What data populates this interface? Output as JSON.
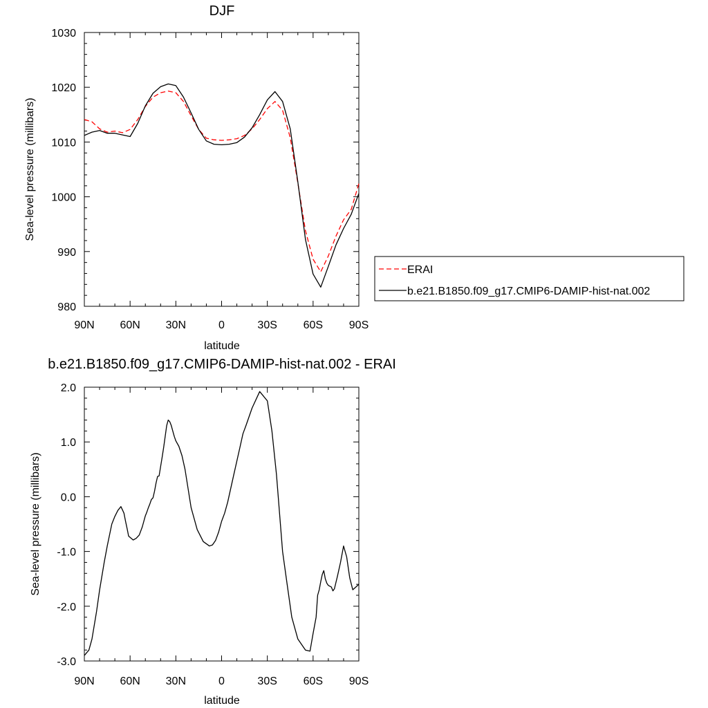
{
  "chart_data": [
    {
      "type": "line",
      "title": "DJF",
      "xlabel": "latitude",
      "ylabel": "Sea-level pressure (millibars)",
      "xlim": [
        90,
        -90
      ],
      "ylim": [
        980,
        1030
      ],
      "x_ticks": [
        {
          "value": 90,
          "label": "90N"
        },
        {
          "value": 60,
          "label": "60N"
        },
        {
          "value": 30,
          "label": "30N"
        },
        {
          "value": 0,
          "label": "0"
        },
        {
          "value": -30,
          "label": "30S"
        },
        {
          "value": -60,
          "label": "60S"
        },
        {
          "value": -90,
          "label": "90S"
        }
      ],
      "y_ticks": [
        {
          "value": 1030,
          "label": "1030"
        },
        {
          "value": 1020,
          "label": "1020"
        },
        {
          "value": 1010,
          "label": "1010"
        },
        {
          "value": 1000,
          "label": "1000"
        },
        {
          "value": 990,
          "label": "990"
        },
        {
          "value": 980,
          "label": "980"
        }
      ],
      "legend": {
        "placement": "right"
      },
      "x": [
        90,
        85,
        80,
        75,
        70,
        65,
        60,
        55,
        50,
        45,
        40,
        35,
        30,
        25,
        20,
        15,
        10,
        5,
        0,
        -5,
        -10,
        -15,
        -20,
        -25,
        -30,
        -35,
        -40,
        -45,
        -50,
        -55,
        -60,
        -65,
        -70,
        -75,
        -80,
        -85,
        -90
      ],
      "series": [
        {
          "name": "ERAI",
          "color": "#ff0000",
          "style": "dashed",
          "values": [
            1014.1,
            1013.7,
            1012.4,
            1011.8,
            1012.0,
            1011.7,
            1012.3,
            1014.1,
            1016.5,
            1018.2,
            1019.0,
            1019.3,
            1019.0,
            1017.4,
            1014.8,
            1012.3,
            1010.7,
            1010.4,
            1010.3,
            1010.4,
            1010.6,
            1011.2,
            1012.4,
            1014.1,
            1016.1,
            1017.4,
            1015.8,
            1010.8,
            1002.5,
            993.8,
            988.6,
            986.3,
            989.2,
            992.8,
            995.8,
            997.7,
            1002.4
          ]
        },
        {
          "name": "b.e21.B1850.f09_g17.CMIP6-DAMIP-hist-nat.002",
          "color": "#000000",
          "style": "solid",
          "values": [
            1011.2,
            1011.8,
            1012.1,
            1011.6,
            1011.6,
            1011.3,
            1011.0,
            1013.4,
            1016.6,
            1018.9,
            1020.1,
            1020.6,
            1020.3,
            1018.2,
            1015.3,
            1012.3,
            1010.2,
            1009.6,
            1009.5,
            1009.6,
            1009.9,
            1010.9,
            1012.6,
            1015.0,
            1017.7,
            1019.2,
            1017.4,
            1012.4,
            1002.7,
            992.2,
            985.9,
            983.5,
            987.3,
            991.2,
            994.2,
            996.8,
            1000.6
          ]
        }
      ]
    },
    {
      "type": "line",
      "title": "b.e21.B1850.f09_g17.CMIP6-DAMIP-hist-nat.002 - ERAI",
      "xlabel": "latitude",
      "ylabel": "Sea-level pressure (millibars)",
      "xlim": [
        90,
        -90
      ],
      "ylim": [
        -3.0,
        2.0
      ],
      "x_ticks": [
        {
          "value": 90,
          "label": "90N"
        },
        {
          "value": 60,
          "label": "60N"
        },
        {
          "value": 30,
          "label": "30N"
        },
        {
          "value": 0,
          "label": "0"
        },
        {
          "value": -30,
          "label": "30S"
        },
        {
          "value": -60,
          "label": "60S"
        },
        {
          "value": -90,
          "label": "90S"
        }
      ],
      "y_ticks": [
        {
          "value": 2.0,
          "label": "2.0"
        },
        {
          "value": 1.0,
          "label": "1.0"
        },
        {
          "value": 0.0,
          "label": "0.0"
        },
        {
          "value": -1.0,
          "label": "-1.0"
        },
        {
          "value": -2.0,
          "label": "-2.0"
        },
        {
          "value": -3.0,
          "label": "-3.0"
        }
      ],
      "x": [
        90,
        87,
        85,
        82,
        80,
        77,
        75,
        72,
        70,
        68,
        66,
        64,
        63,
        62,
        61,
        58,
        56,
        54,
        52,
        50,
        49,
        48,
        47,
        46,
        45,
        44,
        43,
        42,
        41,
        40,
        39,
        38,
        37,
        36,
        35,
        34,
        33,
        32,
        31,
        30,
        28,
        26,
        24,
        20,
        16,
        12,
        8,
        6,
        4,
        2,
        0,
        -2,
        -4,
        -8,
        -12,
        -14,
        -16,
        -20,
        -25,
        -30,
        -33,
        -36,
        -38,
        -40,
        -43,
        -46,
        -50,
        -55,
        -58,
        -60,
        -62,
        -63,
        -64,
        -65,
        -66,
        -67,
        -68,
        -69,
        -70,
        -72,
        -73,
        -74,
        -76,
        -78,
        -80,
        -82,
        -84,
        -86,
        -88,
        -90
      ],
      "series": [
        {
          "name": "",
          "color": "#000000",
          "style": "solid",
          "values": [
            -2.9,
            -2.8,
            -2.6,
            -2.1,
            -1.7,
            -1.2,
            -0.9,
            -0.5,
            -0.36,
            -0.25,
            -0.18,
            -0.3,
            -0.45,
            -0.58,
            -0.72,
            -0.79,
            -0.76,
            -0.7,
            -0.55,
            -0.35,
            -0.28,
            -0.2,
            -0.13,
            -0.05,
            -0.02,
            0.1,
            0.25,
            0.37,
            0.38,
            0.55,
            0.72,
            0.9,
            1.1,
            1.3,
            1.4,
            1.37,
            1.3,
            1.2,
            1.1,
            1.02,
            0.92,
            0.75,
            0.5,
            -0.2,
            -0.6,
            -0.82,
            -0.9,
            -0.88,
            -0.8,
            -0.65,
            -0.45,
            -0.3,
            -0.1,
            0.4,
            0.9,
            1.15,
            1.3,
            1.62,
            1.92,
            1.75,
            1.2,
            0.4,
            -0.3,
            -1.0,
            -1.6,
            -2.2,
            -2.6,
            -2.8,
            -2.82,
            -2.5,
            -2.2,
            -1.8,
            -1.7,
            -1.55,
            -1.42,
            -1.35,
            -1.5,
            -1.58,
            -1.62,
            -1.65,
            -1.72,
            -1.68,
            -1.45,
            -1.2,
            -0.9,
            -1.1,
            -1.48,
            -1.7,
            -1.65,
            -1.6
          ]
        }
      ]
    }
  ]
}
